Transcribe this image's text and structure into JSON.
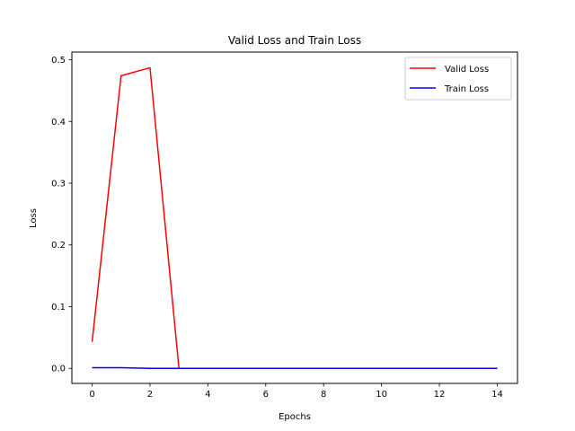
{
  "chart_data": {
    "type": "line",
    "title": "Valid Loss and Train Loss",
    "xlabel": "Epochs",
    "ylabel": "Loss",
    "xlim": [
      -0.7,
      14.7
    ],
    "ylim": [
      -0.0244,
      0.5124
    ],
    "x_ticks": [
      0,
      2,
      4,
      6,
      8,
      10,
      12,
      14
    ],
    "y_ticks": [
      0.0,
      0.1,
      0.2,
      0.3,
      0.4,
      0.5
    ],
    "y_tick_labels": [
      "0.0",
      "0.1",
      "0.2",
      "0.3",
      "0.4",
      "0.5"
    ],
    "grid": false,
    "legend_position": "top-right",
    "x": [
      0,
      1,
      2,
      3,
      4,
      5,
      6,
      7,
      8,
      9,
      10,
      11,
      12,
      13,
      14
    ],
    "series": [
      {
        "name": "Valid Loss",
        "color": "#ff0000",
        "values": [
          0.043,
          0.474,
          0.487,
          0.0,
          0.0,
          0.0,
          0.0,
          0.0,
          0.0,
          0.0,
          0.0,
          0.0,
          0.0,
          0.0,
          0.0
        ]
      },
      {
        "name": "Train Loss",
        "color": "#0000ff",
        "values": [
          0.001,
          0.001,
          0.0,
          0.0,
          0.0,
          0.0,
          0.0,
          0.0,
          0.0,
          0.0,
          0.0,
          0.0,
          0.0,
          0.0,
          0.0
        ]
      }
    ]
  }
}
